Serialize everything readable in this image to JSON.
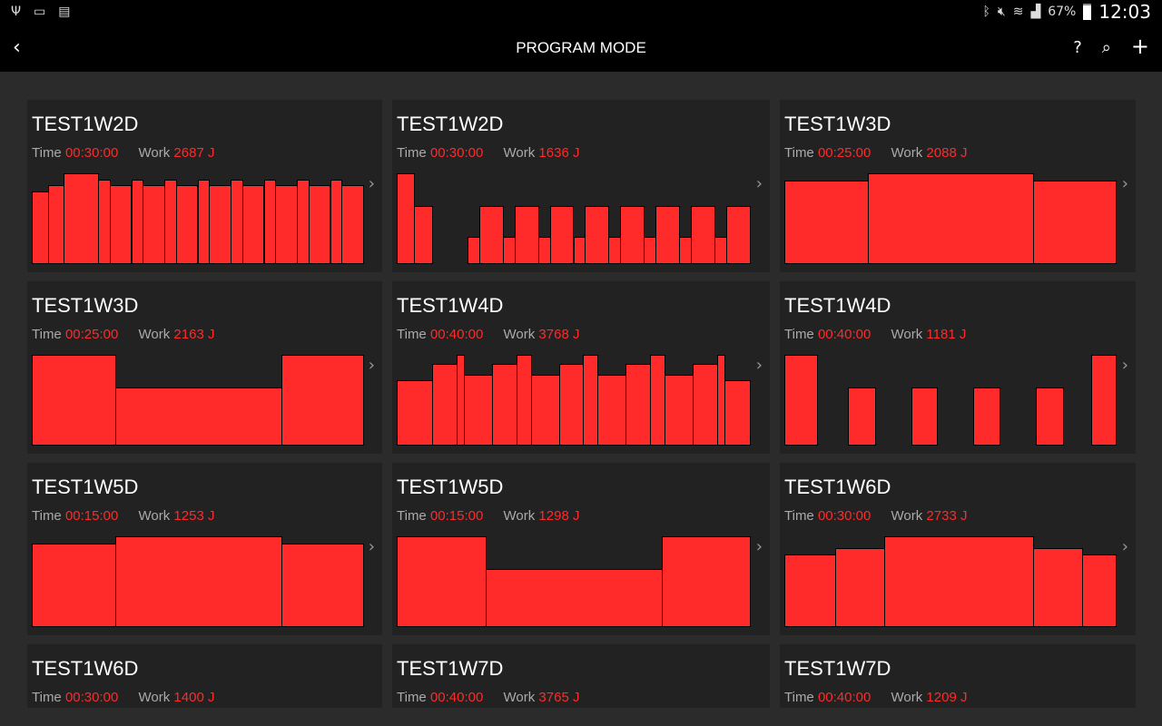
{
  "status_bar": {
    "left_icons": [
      "usb-icon",
      "cast-icon",
      "file-x-icon"
    ],
    "right_icons": [
      "bluetooth-icon",
      "mute-icon",
      "wifi-icon",
      "signal-icon"
    ],
    "battery": "67%",
    "time": "12:03"
  },
  "app_bar": {
    "title": "PROGRAM MODE",
    "actions": [
      "help-icon",
      "search-icon",
      "add-icon"
    ],
    "help_label": "?",
    "search_label": "⌕",
    "add_label": "+",
    "back_label": "‹"
  },
  "labels": {
    "time": "Time",
    "work": "Work"
  },
  "colors": {
    "accent": "#ff2a2a",
    "card_bg": "#222222",
    "page_bg": "#2b2b2b"
  },
  "programs": [
    {
      "name": "TEST1W2D",
      "time": "00:30:00",
      "work": "2687 J",
      "bars": [
        [
          17,
          0.8
        ],
        [
          17,
          0.87
        ],
        [
          36,
          1
        ],
        [
          12,
          0.93
        ],
        [
          23,
          0.87
        ],
        [
          12,
          0.93
        ],
        [
          23,
          0.87
        ],
        [
          12,
          0.93
        ],
        [
          23,
          0.87
        ],
        [
          12,
          0.93
        ],
        [
          23,
          0.87
        ],
        [
          12,
          0.93
        ],
        [
          23,
          0.87
        ],
        [
          12,
          0.93
        ],
        [
          23,
          0.87
        ],
        [
          12,
          0.93
        ],
        [
          23,
          0.87
        ],
        [
          12,
          0.93
        ],
        [
          23,
          0.87
        ]
      ]
    },
    {
      "name": "TEST1W2D",
      "time": "00:30:00",
      "work": "1636 J",
      "bars": [
        [
          19,
          1
        ],
        [
          20,
          0.64
        ],
        [
          39,
          0
        ],
        [
          13,
          0.3
        ],
        [
          26,
          0.64
        ],
        [
          13,
          0.3
        ],
        [
          26,
          0.64
        ],
        [
          13,
          0.3
        ],
        [
          26,
          0.64
        ],
        [
          13,
          0.3
        ],
        [
          26,
          0.64
        ],
        [
          13,
          0.3
        ],
        [
          26,
          0.64
        ],
        [
          13,
          0.3
        ],
        [
          26,
          0.64
        ],
        [
          13,
          0.3
        ],
        [
          26,
          0.64
        ],
        [
          13,
          0.3
        ],
        [
          26,
          0.64
        ]
      ]
    },
    {
      "name": "TEST1W3D",
      "time": "00:25:00",
      "work": "2088 J",
      "bars": [
        [
          92,
          0.92
        ],
        [
          182,
          1
        ],
        [
          91,
          0.92
        ]
      ]
    },
    {
      "name": "TEST1W3D",
      "time": "00:25:00",
      "work": "2163 J",
      "bars": [
        [
          92,
          1
        ],
        [
          183,
          0.64
        ],
        [
          90,
          1
        ]
      ]
    },
    {
      "name": "TEST1W4D",
      "time": "00:40:00",
      "work": "3768 J",
      "bars": [
        [
          39,
          0.72
        ],
        [
          27,
          0.9
        ],
        [
          8,
          1
        ],
        [
          31,
          0.78
        ],
        [
          27,
          0.9
        ],
        [
          16,
          1
        ],
        [
          31,
          0.78
        ],
        [
          27,
          0.9
        ],
        [
          16,
          1
        ],
        [
          31,
          0.78
        ],
        [
          27,
          0.9
        ],
        [
          16,
          1
        ],
        [
          31,
          0.78
        ],
        [
          27,
          0.9
        ],
        [
          8,
          1
        ],
        [
          28,
          0.72
        ]
      ]
    },
    {
      "name": "TEST1W4D",
      "time": "00:40:00",
      "work": "1181 J",
      "bars": [
        [
          36,
          1
        ],
        [
          34,
          0
        ],
        [
          30,
          0.64
        ],
        [
          40,
          0
        ],
        [
          28,
          0.64
        ],
        [
          41,
          0
        ],
        [
          29,
          0.64
        ],
        [
          40,
          0
        ],
        [
          30,
          0.64
        ],
        [
          31,
          0
        ],
        [
          27,
          1
        ]
      ]
    },
    {
      "name": "TEST1W5D",
      "time": "00:15:00",
      "work": "1253 J",
      "bars": [
        [
          92,
          0.92
        ],
        [
          183,
          1
        ],
        [
          90,
          0.92
        ]
      ]
    },
    {
      "name": "TEST1W5D",
      "time": "00:15:00",
      "work": "1298 J",
      "bars": [
        [
          98,
          1
        ],
        [
          195,
          0.64
        ],
        [
          97,
          1
        ]
      ]
    },
    {
      "name": "TEST1W6D",
      "time": "00:30:00",
      "work": "2733 J",
      "bars": [
        [
          56,
          0.8
        ],
        [
          54,
          0.87
        ],
        [
          165,
          1
        ],
        [
          54,
          0.87
        ],
        [
          37,
          0.8
        ]
      ]
    },
    {
      "name": "TEST1W6D",
      "time": "00:30:00",
      "work": "1400 J",
      "bars": []
    },
    {
      "name": "TEST1W7D",
      "time": "00:40:00",
      "work": "3765 J",
      "bars": []
    },
    {
      "name": "TEST1W7D",
      "time": "00:40:00",
      "work": "1209 J",
      "bars": []
    }
  ]
}
